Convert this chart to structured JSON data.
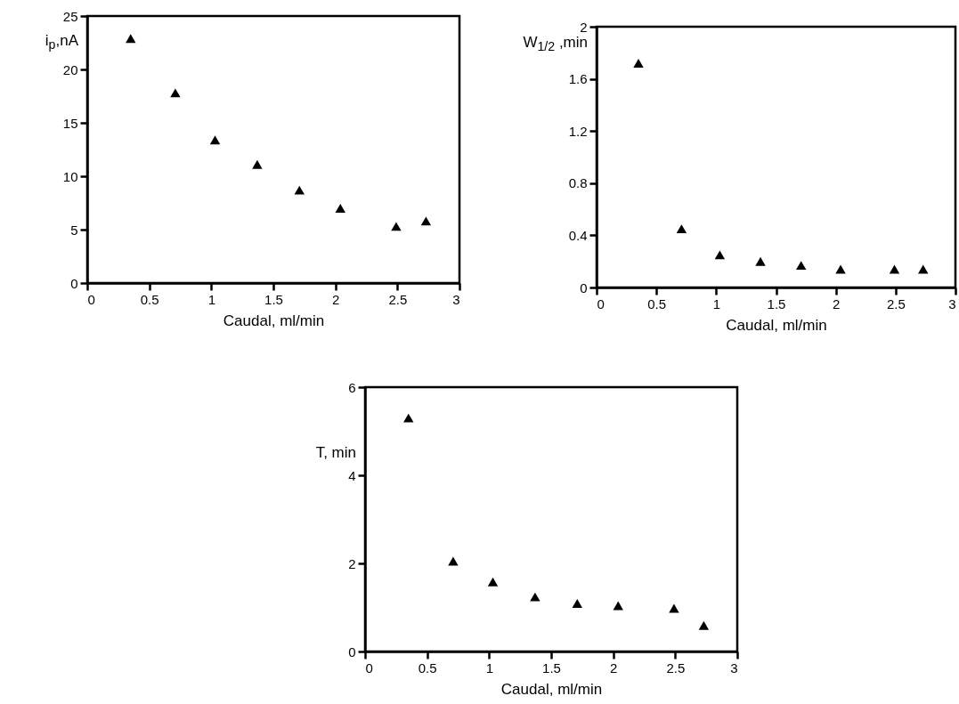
{
  "chart_data": [
    {
      "type": "scatter",
      "xlabel": "Caudal, ml/min",
      "ylabel": "i$_{p}$,nA",
      "x": [
        0.35,
        0.71,
        1.03,
        1.37,
        1.71,
        2.04,
        2.49,
        2.73
      ],
      "marker": "triangle",
      "xlim": [
        0,
        3
      ],
      "xticks": [
        0,
        0.5,
        1,
        1.5,
        2,
        2.5,
        3
      ],
      "ylim": [
        0,
        25
      ],
      "yticks": [
        0,
        5,
        10,
        15,
        20,
        25
      ],
      "series": [
        {
          "color": "#000000",
          "values": [
            22.9,
            17.8,
            13.4,
            11.1,
            8.7,
            7.0,
            5.3,
            5.8
          ]
        }
      ]
    },
    {
      "type": "scatter",
      "xlabel": "Caudal, ml/min",
      "ylabel": "W$_{1/2}$ ,min",
      "x": [
        0.35,
        0.71,
        1.03,
        1.37,
        1.71,
        2.04,
        2.49,
        2.73
      ],
      "marker": "triangle",
      "xlim": [
        0,
        3
      ],
      "xticks": [
        0,
        0.5,
        1,
        1.5,
        2,
        2.5,
        3
      ],
      "ylim": [
        0,
        2
      ],
      "yticks": [
        0,
        0.4,
        0.8,
        1.2,
        1.6,
        2
      ],
      "series": [
        {
          "color": "#000000",
          "values": [
            1.72,
            0.45,
            0.25,
            0.2,
            0.17,
            0.14,
            0.14,
            0.14
          ]
        }
      ]
    },
    {
      "type": "scatter",
      "xlabel": "Caudal, ml/min",
      "ylabel": "T, min",
      "x": [
        0.35,
        0.71,
        1.03,
        1.37,
        1.71,
        2.04,
        2.49,
        2.73
      ],
      "marker": "triangle",
      "xlim": [
        0,
        3
      ],
      "xticks": [
        0,
        0.5,
        1,
        1.5,
        2,
        2.5,
        3
      ],
      "ylim": [
        0,
        6
      ],
      "yticks": [
        0,
        2,
        4,
        6
      ],
      "series": [
        {
          "color": "#000000",
          "values": [
            5.3,
            2.05,
            1.58,
            1.24,
            1.09,
            1.04,
            0.98,
            0.59
          ]
        }
      ]
    }
  ]
}
